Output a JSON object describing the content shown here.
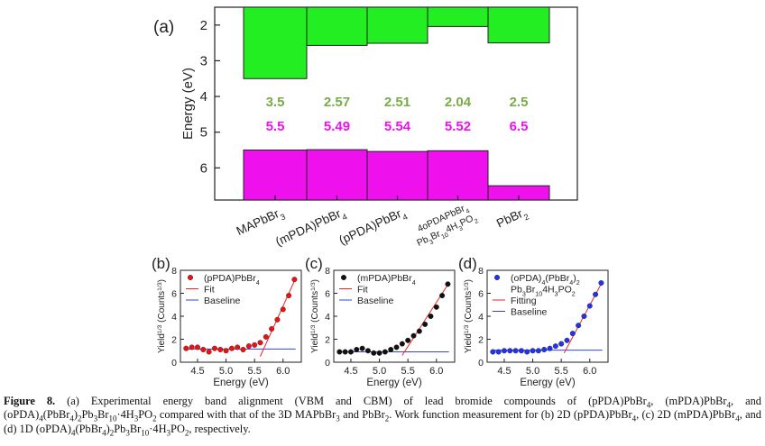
{
  "chart_data": [
    {
      "type": "bar",
      "panel_label": "(a)",
      "ylabel": "Energy (eV)",
      "ylim": [
        6.9,
        1.5
      ],
      "yticks": [
        2,
        3,
        4,
        5,
        6
      ],
      "categories": [
        "MAPbBr3",
        "(mPDA)PbBr4",
        "(pPDA)PbBr4",
        "4oPDAPbBr4 Pb3Br104H3PO2",
        "PbBr2"
      ],
      "category_labels": [
        {
          "parts": [
            {
              "t": "MAPbBr"
            },
            {
              "t": "3",
              "s": "sub"
            }
          ]
        },
        {
          "parts": [
            {
              "t": "(mPDA)PbBr"
            },
            {
              "t": "4",
              "s": "sub"
            }
          ]
        },
        {
          "parts": [
            {
              "t": "(pPDA)PbBr"
            },
            {
              "t": "4",
              "s": "sub"
            }
          ]
        },
        {
          "line1": [
            {
              "t": "4oPDAPbBr"
            },
            {
              "t": "4",
              "s": "sub"
            }
          ],
          "line2": [
            {
              "t": "Pb"
            },
            {
              "t": "3",
              "s": "sub"
            },
            {
              "t": "Br"
            },
            {
              "t": "10",
              "s": "sub"
            },
            {
              "t": "4H"
            },
            {
              "t": "3",
              "s": "sub"
            },
            {
              "t": "PO"
            },
            {
              "t": "2",
              "s": "sub"
            }
          ]
        },
        {
          "parts": [
            {
              "t": "PbBr"
            },
            {
              "t": "2",
              "s": "sub"
            }
          ]
        }
      ],
      "series": [
        {
          "values": [
            3.5,
            2.57,
            2.51,
            2.04,
            2.5
          ],
          "labels": [
            "3.5",
            "2.57",
            "2.51",
            "2.04",
            "2.5"
          ],
          "color": "#22ee22",
          "label_color": "#77ac48"
        },
        {
          "values": [
            5.5,
            5.49,
            5.54,
            5.52,
            6.5
          ],
          "labels": [
            "5.5",
            "5.49",
            "5.54",
            "5.52",
            "6.5"
          ],
          "color": "#ee11ee",
          "label_color": "#ee11ee"
        }
      ],
      "grid": false
    },
    {
      "type": "scatter",
      "panel_label": "(b)",
      "title": [
        {
          "t": "(pPDA)PbBr"
        },
        {
          "t": "4",
          "s": "sub"
        }
      ],
      "xlabel": "Energy (eV)",
      "xlim": [
        4.2,
        6.32
      ],
      "ylim": [
        0,
        8
      ],
      "xticks": [
        "4.5",
        "5.0",
        "5.5",
        "6.0"
      ],
      "yticks": [
        0,
        2,
        4,
        6,
        8
      ],
      "point_color": "#ee1111",
      "points": [
        [
          4.3,
          1.2
        ],
        [
          4.4,
          1.3
        ],
        [
          4.5,
          1.3
        ],
        [
          4.6,
          1.1
        ],
        [
          4.7,
          0.9
        ],
        [
          4.8,
          1.2
        ],
        [
          4.9,
          1.1
        ],
        [
          5.0,
          1.0
        ],
        [
          5.1,
          1.2
        ],
        [
          5.2,
          1.3
        ],
        [
          5.3,
          1.1
        ],
        [
          5.4,
          1.4
        ],
        [
          5.5,
          1.5
        ],
        [
          5.6,
          1.7
        ],
        [
          5.7,
          2.2
        ],
        [
          5.8,
          2.9
        ],
        [
          5.9,
          3.7
        ],
        [
          6.0,
          4.6
        ],
        [
          6.1,
          5.8
        ],
        [
          6.2,
          7.2
        ]
      ],
      "fit": {
        "x": [
          5.6,
          6.22
        ],
        "y": [
          0.5,
          7.3
        ]
      },
      "baseline": {
        "x": [
          4.3,
          6.22
        ],
        "y": [
          1.15,
          1.15
        ]
      },
      "legend": [
        {
          "label": [
            {
              "t": "(pPDA)PbBr"
            },
            {
              "t": "4",
              "s": "sub"
            }
          ],
          "kind": "point"
        },
        {
          "label": [
            {
              "t": "Fit"
            }
          ],
          "kind": "fit"
        },
        {
          "label": [
            {
              "t": "Baseline"
            }
          ],
          "kind": "baseline"
        }
      ]
    },
    {
      "type": "scatter",
      "panel_label": "(c)",
      "xlabel": "Energy (eV)",
      "xlim": [
        4.2,
        6.32
      ],
      "ylim": [
        0,
        8
      ],
      "xticks": [
        "4.5",
        "5.0",
        "5.5",
        "6.0"
      ],
      "yticks": [
        0,
        2,
        4,
        6,
        8
      ],
      "point_color": "#111111",
      "points": [
        [
          4.3,
          0.9
        ],
        [
          4.4,
          0.9
        ],
        [
          4.5,
          0.9
        ],
        [
          4.6,
          1.1
        ],
        [
          4.7,
          1.2
        ],
        [
          4.8,
          1.0
        ],
        [
          4.9,
          0.8
        ],
        [
          5.0,
          0.8
        ],
        [
          5.1,
          0.9
        ],
        [
          5.2,
          1.1
        ],
        [
          5.3,
          1.3
        ],
        [
          5.4,
          1.6
        ],
        [
          5.5,
          1.9
        ],
        [
          5.6,
          2.3
        ],
        [
          5.7,
          2.7
        ],
        [
          5.8,
          3.3
        ],
        [
          5.9,
          4.0
        ],
        [
          6.0,
          4.8
        ],
        [
          6.1,
          5.8
        ],
        [
          6.2,
          6.8
        ]
      ],
      "fit": {
        "x": [
          5.4,
          6.22
        ],
        "y": [
          0.6,
          6.9
        ]
      },
      "baseline": {
        "x": [
          4.3,
          6.22
        ],
        "y": [
          0.9,
          0.9
        ]
      },
      "legend": [
        {
          "label": [
            {
              "t": "(mPDA)PbBr"
            },
            {
              "t": "4",
              "s": "sub"
            }
          ],
          "kind": "point"
        },
        {
          "label": [
            {
              "t": "Fit"
            }
          ],
          "kind": "fit"
        },
        {
          "label": [
            {
              "t": "Baseline"
            }
          ],
          "kind": "baseline"
        }
      ]
    },
    {
      "type": "scatter",
      "panel_label": "(d)",
      "xlabel": "Energy (eV)",
      "xlim": [
        4.2,
        6.32
      ],
      "ylim": [
        0,
        8
      ],
      "xticks": [
        "4.5",
        "5.0",
        "5.5",
        "6.0"
      ],
      "yticks": [
        0,
        2,
        4,
        6,
        8
      ],
      "point_color": "#2233ee",
      "points": [
        [
          4.3,
          0.9
        ],
        [
          4.4,
          0.9
        ],
        [
          4.5,
          1.0
        ],
        [
          4.6,
          1.0
        ],
        [
          4.7,
          1.0
        ],
        [
          4.8,
          1.0
        ],
        [
          4.9,
          0.9
        ],
        [
          5.0,
          1.0
        ],
        [
          5.1,
          1.0
        ],
        [
          5.2,
          1.1
        ],
        [
          5.3,
          1.2
        ],
        [
          5.4,
          1.4
        ],
        [
          5.5,
          1.6
        ],
        [
          5.6,
          1.9
        ],
        [
          5.7,
          2.5
        ],
        [
          5.8,
          3.2
        ],
        [
          5.9,
          4.0
        ],
        [
          6.0,
          4.9
        ],
        [
          6.1,
          5.9
        ],
        [
          6.2,
          6.9
        ]
      ],
      "fit": {
        "x": [
          5.55,
          6.22
        ],
        "y": [
          0.8,
          7.0
        ]
      },
      "baseline": {
        "x": [
          4.3,
          6.22
        ],
        "y": [
          1.05,
          1.05
        ]
      },
      "legend": [
        {
          "label": [
            {
              "t": "(oPDA)"
            },
            {
              "t": "4",
              "s": "sub"
            },
            {
              "t": "(PbBr"
            },
            {
              "t": "4",
              "s": "sub"
            },
            {
              "t": ")"
            },
            {
              "t": "2",
              "s": "sub"
            }
          ],
          "kind": "point"
        },
        {
          "label": [
            {
              "t": "Pb"
            },
            {
              "t": "3",
              "s": "sub"
            },
            {
              "t": "Br"
            },
            {
              "t": "10",
              "s": "sub"
            },
            {
              "t": "4H"
            },
            {
              "t": "3",
              "s": "sub"
            },
            {
              "t": "PO"
            },
            {
              "t": "2",
              "s": "sub"
            }
          ],
          "kind": "none"
        },
        {
          "label": [
            {
              "t": "Fitting"
            }
          ],
          "kind": "fit"
        },
        {
          "label": [
            {
              "t": "Baseline"
            }
          ],
          "kind": "baseline"
        }
      ]
    }
  ],
  "ylabel_small": "Yield",
  "ylabel_small_sup": "1/3",
  "ylabel_small_rest": " (Counts",
  "ylabel_small_close": ")",
  "ylabel_small_sup2": "1/3",
  "caption": {
    "label": "Figure 8.",
    "parts": [
      {
        "t": " (a) Experimental energy band alignment (VBM and CBM) of lead bromide compounds of (pPDA)PbBr"
      },
      {
        "t": "4",
        "s": "sub"
      },
      {
        "t": ", (mPDA)PbBr"
      },
      {
        "t": "4",
        "s": "sub"
      },
      {
        "t": ", and (oPDA)"
      },
      {
        "t": "4",
        "s": "sub"
      },
      {
        "t": "(PbBr"
      },
      {
        "t": "4",
        "s": "sub"
      },
      {
        "t": ")"
      },
      {
        "t": "2",
        "s": "sub"
      },
      {
        "t": "Pb"
      },
      {
        "t": "3",
        "s": "sub"
      },
      {
        "t": "Br"
      },
      {
        "t": "10",
        "s": "sub"
      },
      {
        "t": "·4H"
      },
      {
        "t": "3",
        "s": "sub"
      },
      {
        "t": "PO"
      },
      {
        "t": "2",
        "s": "sub"
      },
      {
        "t": " compared with that of the 3D MAPbBr"
      },
      {
        "t": "3",
        "s": "sub"
      },
      {
        "t": " and PbBr"
      },
      {
        "t": "2",
        "s": "sub"
      },
      {
        "t": ". Work function measurement for (b) 2D (pPDA)PbBr"
      },
      {
        "t": "4",
        "s": "sub"
      },
      {
        "t": ", (c) 2D (mPDA)PbBr"
      },
      {
        "t": "4",
        "s": "sub"
      },
      {
        "t": ", and (d) 1D (oPDA)"
      },
      {
        "t": "4",
        "s": "sub"
      },
      {
        "t": "(PbBr"
      },
      {
        "t": "4",
        "s": "sub"
      },
      {
        "t": ")"
      },
      {
        "t": "2",
        "s": "sub"
      },
      {
        "t": "Pb"
      },
      {
        "t": "3",
        "s": "sub"
      },
      {
        "t": "Br"
      },
      {
        "t": "10",
        "s": "sub"
      },
      {
        "t": "·4H"
      },
      {
        "t": "3",
        "s": "sub"
      },
      {
        "t": "PO"
      },
      {
        "t": "2",
        "s": "sub"
      },
      {
        "t": ", respectively."
      }
    ]
  }
}
